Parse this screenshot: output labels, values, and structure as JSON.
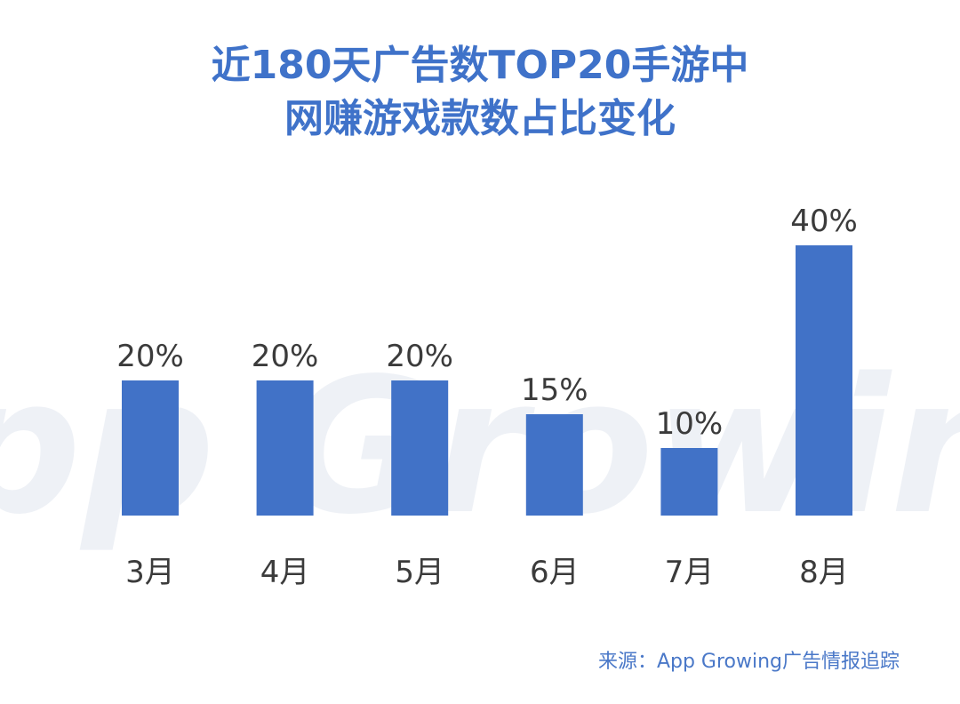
{
  "title": {
    "line1": "近180天广告数TOP20手游中",
    "line2": "网赚游戏款数占比变化"
  },
  "source": "来源：App Growing广告情报追踪",
  "watermark": "App Growing",
  "colors": {
    "bar": "#4172c7",
    "title": "#3f72c9",
    "label": "#3b3b3b",
    "watermark": "#eef1f6"
  },
  "chart_data": {
    "type": "bar",
    "categories": [
      "3月",
      "4月",
      "5月",
      "6月",
      "7月",
      "8月"
    ],
    "values": [
      20,
      20,
      20,
      15,
      10,
      40
    ],
    "value_labels": [
      "20%",
      "20%",
      "20%",
      "15%",
      "10%",
      "40%"
    ],
    "title": "近180天广告数TOP20手游中网赚游戏款数占比变化",
    "xlabel": "",
    "ylabel": "",
    "ylim": [
      0,
      40
    ],
    "grid": false,
    "legend": "none"
  }
}
